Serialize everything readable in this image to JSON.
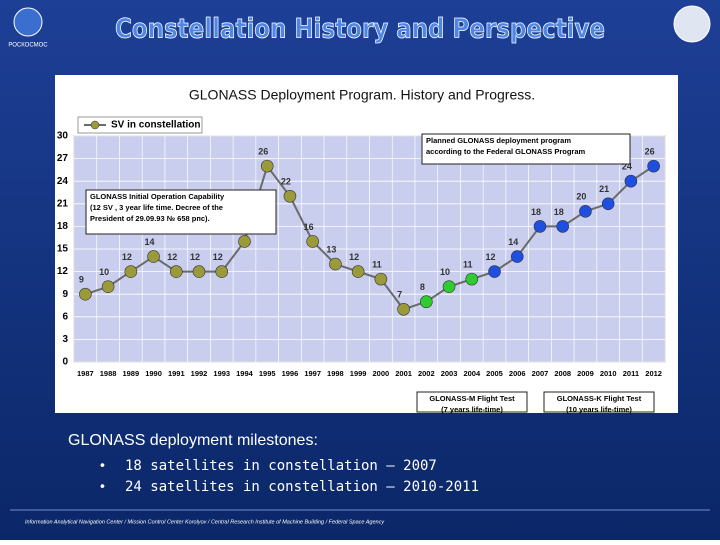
{
  "slide": {
    "title": "Constellation History and Perspective",
    "logo_text": "РОСКОСМОС",
    "milestones_heading": "GLONASS deployment milestones:",
    "bullets": [
      "18 satellites in constellation – 2007",
      "24 satellites in constellation – 2010-2011"
    ],
    "footer": "Information Analytical Navigation Center / Mission Control Center Korolyov / Central Research Institute of Machine Building / Federal Space Agency"
  },
  "chart_data": {
    "type": "line",
    "title": "GLONASS Deployment Program. History and Progress.",
    "categories": [
      "1987",
      "1988",
      "1989",
      "1990",
      "1991",
      "1992",
      "1993",
      "1994",
      "1995",
      "1996",
      "1997",
      "1998",
      "1999",
      "2000",
      "2001",
      "2002",
      "2003",
      "2004",
      "2005",
      "2006",
      "2007",
      "2008",
      "2009",
      "2010",
      "2011",
      "2012"
    ],
    "series": [
      {
        "name": "SV in constellation",
        "color": "#6b6b6b",
        "values": [
          9,
          10,
          12,
          14,
          12,
          12,
          12,
          16,
          26,
          22,
          16,
          13,
          12,
          11,
          7,
          8,
          10,
          11,
          12,
          14,
          18,
          18,
          20,
          21,
          24,
          26
        ],
        "point_colors": [
          "#9a9a3a",
          "#9a9a3a",
          "#9a9a3a",
          "#9a9a3a",
          "#9a9a3a",
          "#9a9a3a",
          "#9a9a3a",
          "#9a9a3a",
          "#9a9a3a",
          "#9a9a3a",
          "#9a9a3a",
          "#9a9a3a",
          "#9a9a3a",
          "#9a9a3a",
          "#9a9a3a",
          "#2ecc2e",
          "#2ecc2e",
          "#2ecc2e",
          "#1f4fe0",
          "#1f4fe0",
          "#1f4fe0",
          "#1f4fe0",
          "#1f4fe0",
          "#1f4fe0",
          "#1f4fe0",
          "#1f4fe0"
        ]
      }
    ],
    "ylim": [
      0,
      30
    ],
    "yticks": [
      0,
      3,
      6,
      9,
      12,
      15,
      18,
      21,
      24,
      27,
      30
    ],
    "grid": true,
    "legend": "top-left",
    "annotations": [
      {
        "lines": [
          "GLONASS Initial Operation Capability",
          "(12 SV , 3 year life time. Decree of the",
          "President of 29.09.93 № 658 рпс)."
        ]
      },
      {
        "lines": [
          "Planned GLONASS deployment program",
          "according to the Federal GLONASS Program"
        ]
      },
      {
        "lines": [
          "GLONASS-M Flight Test",
          "(7 years life-time)"
        ]
      },
      {
        "lines": [
          "GLONASS-K Flight Test",
          "(10 years life-time)"
        ]
      }
    ]
  }
}
